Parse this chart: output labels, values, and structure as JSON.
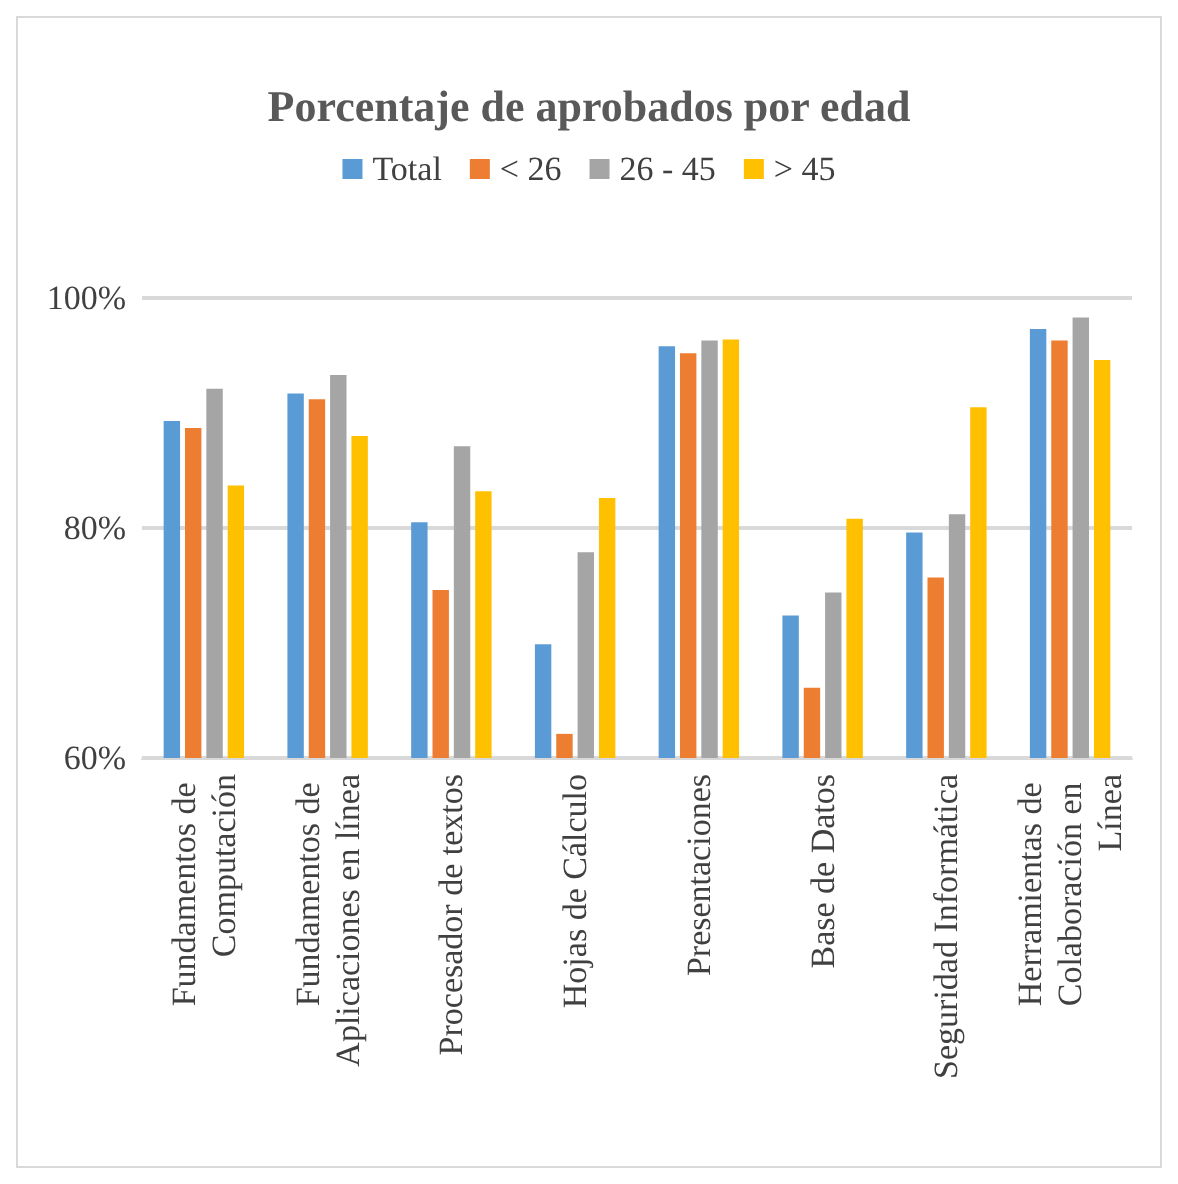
{
  "chart_data": {
    "type": "bar",
    "title": "Porcentaje de aprobados por edad",
    "categories": [
      "Fundamentos de Computación",
      "Fundamentos de Aplicaciones en línea",
      "Procesador de textos",
      "Hojas de Cálculo",
      "Presentaciones",
      "Base de Datos",
      "Seguridad Informática",
      "Herramientas de Colaboración en Línea"
    ],
    "series": [
      {
        "name": "Total",
        "color": "#5b9bd5",
        "values": [
          89.3,
          91.7,
          80.5,
          69.9,
          95.8,
          72.4,
          79.6,
          97.3
        ]
      },
      {
        "name": "< 26",
        "color": "#ed7d31",
        "values": [
          88.7,
          91.2,
          74.6,
          62.1,
          95.2,
          66.1,
          75.7,
          96.3
        ]
      },
      {
        "name": "26 - 45",
        "color": "#a5a5a5",
        "values": [
          92.1,
          93.3,
          87.1,
          77.9,
          96.3,
          74.4,
          81.2,
          98.3
        ]
      },
      {
        "name": "> 45",
        "color": "#ffc000",
        "values": [
          83.7,
          88.0,
          83.2,
          82.6,
          96.4,
          80.8,
          90.5,
          94.6
        ]
      }
    ],
    "ylim": [
      60,
      100
    ],
    "yticks": [
      {
        "value": 60,
        "label": "60%"
      },
      {
        "value": 80,
        "label": "80%"
      },
      {
        "value": 100,
        "label": "100%"
      }
    ],
    "grid": "y",
    "legend": "top"
  }
}
